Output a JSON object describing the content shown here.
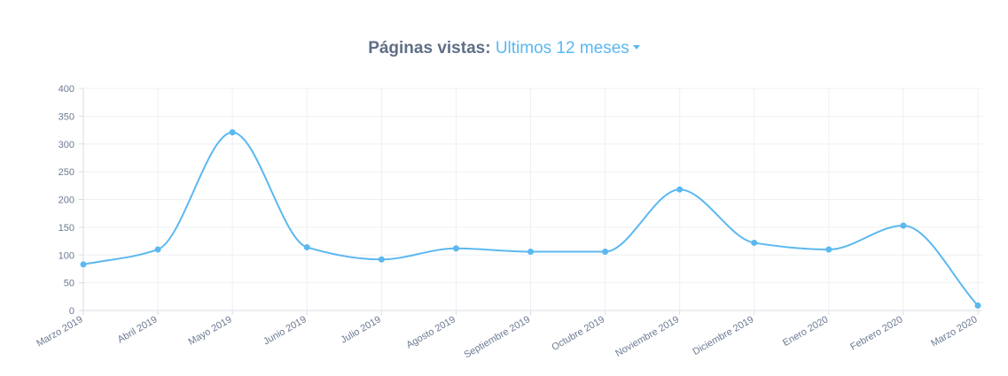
{
  "header": {
    "title_label": "Páginas vistas:",
    "range_label": "Ultimos 12 meses"
  },
  "colors": {
    "line": "#5bb8f0",
    "grid": "#eef0f3",
    "axis": "#d8dde5",
    "text": "#6b7a92"
  },
  "chart_data": {
    "type": "line",
    "title": "",
    "xlabel": "",
    "ylabel": "",
    "ylim": [
      0,
      400
    ],
    "yticks": [
      0,
      50,
      100,
      150,
      200,
      250,
      300,
      350,
      400
    ],
    "categories": [
      "Marzo 2019",
      "Abril 2019",
      "Mayo 2019",
      "Junio 2019",
      "Julio 2019",
      "Agosto 2019",
      "Septiembre 2019",
      "Octubre 2019",
      "Noviembre 2019",
      "Diciembre 2019",
      "Enero 2020",
      "Febrero 2020",
      "Marzo 2020"
    ],
    "series": [
      {
        "values": [
          83,
          110,
          321,
          114,
          92,
          112,
          106,
          106,
          218,
          122,
          110,
          153,
          9
        ]
      }
    ],
    "grid": true,
    "legend": "none"
  }
}
